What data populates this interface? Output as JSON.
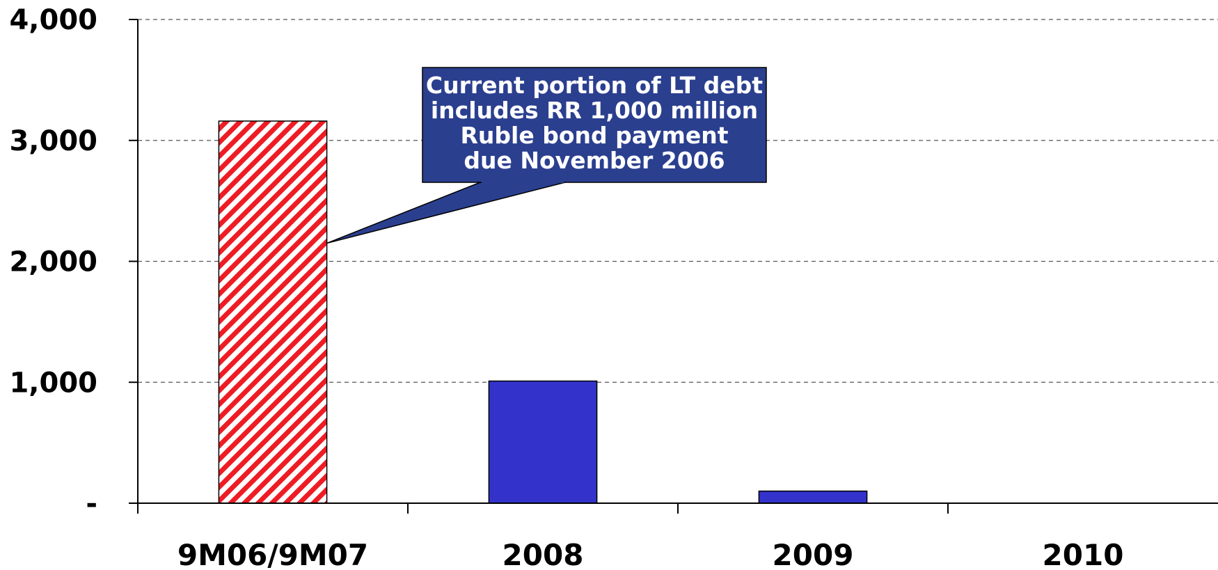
{
  "chart_data": {
    "type": "bar",
    "categories": [
      "9M06/9M07",
      "2008",
      "2009",
      "2010"
    ],
    "values": [
      3160,
      1010,
      100,
      0
    ],
    "ylim": [
      0,
      4000
    ],
    "yticks": [
      0,
      1000,
      2000,
      3000,
      4000
    ],
    "ytick_labels": [
      "-",
      "1,000",
      "2,000",
      "3,000",
      "4,000"
    ],
    "grid": true,
    "bar_styles": [
      "hatched-red",
      "solid",
      "solid",
      "solid"
    ],
    "colors": {
      "bar": "#3333cc",
      "hatch": "#ee1c24",
      "callout": "#2b3f8f"
    },
    "annotation": {
      "lines": [
        "Current portion of LT debt",
        "includes RR 1,000 million",
        "Ruble bond payment",
        "due November 2006"
      ],
      "points_to_category": "9M06/9M07",
      "points_to_value": 2150
    }
  }
}
